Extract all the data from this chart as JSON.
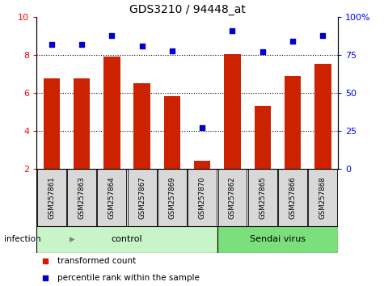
{
  "title": "GDS3210 / 94448_at",
  "samples": [
    "GSM257861",
    "GSM257863",
    "GSM257864",
    "GSM257867",
    "GSM257869",
    "GSM257870",
    "GSM257862",
    "GSM257865",
    "GSM257866",
    "GSM257868"
  ],
  "bar_values": [
    6.75,
    6.75,
    7.9,
    6.5,
    5.85,
    2.4,
    8.05,
    5.3,
    6.9,
    7.55
  ],
  "scatter_values": [
    82,
    82,
    88,
    81,
    78,
    27,
    91,
    77,
    84,
    88
  ],
  "groups": [
    {
      "label": "control",
      "start": 0,
      "end": 6,
      "color": "#c8f5c8"
    },
    {
      "label": "Sendai virus",
      "start": 6,
      "end": 10,
      "color": "#7be07b"
    }
  ],
  "bar_color": "#cc2200",
  "scatter_color": "#0000cc",
  "bar_bottom": 2,
  "ylim_left": [
    2,
    10
  ],
  "ylim_right": [
    0,
    100
  ],
  "yticks_left": [
    2,
    4,
    6,
    8,
    10
  ],
  "yticks_right": [
    0,
    25,
    50,
    75,
    100
  ],
  "ytick_labels_right": [
    "0",
    "25",
    "50",
    "75",
    "100%"
  ],
  "grid_lines": [
    4,
    6,
    8
  ],
  "infection_label": "infection",
  "legend_bar_label": "transformed count",
  "legend_scatter_label": "percentile rank within the sample",
  "plot_bg_color": "#ffffff",
  "sample_box_color": "#d8d8d8"
}
